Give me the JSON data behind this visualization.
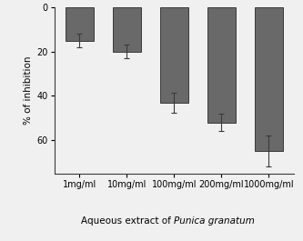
{
  "categories": [
    "1mg/ml",
    "10mg/ml",
    "100mg/ml",
    "200mg/ml",
    "1000mg/ml"
  ],
  "values": [
    15,
    20,
    43,
    52,
    65
  ],
  "errors": [
    3,
    3,
    4.5,
    4,
    7
  ],
  "bar_color": "#696969",
  "bar_edge_color": "#3a3a3a",
  "background_color": "#f0f0f0",
  "ylabel": "% of inhibition",
  "xlabel_regular": "Aqueous extract of ",
  "xlabel_italic": "Punica granatum",
  "ylim": [
    75,
    0
  ],
  "yticks": [
    0,
    20,
    40,
    60
  ],
  "bar_width": 0.6,
  "figsize": [
    3.33,
    2.65
  ],
  "dpi": 100
}
